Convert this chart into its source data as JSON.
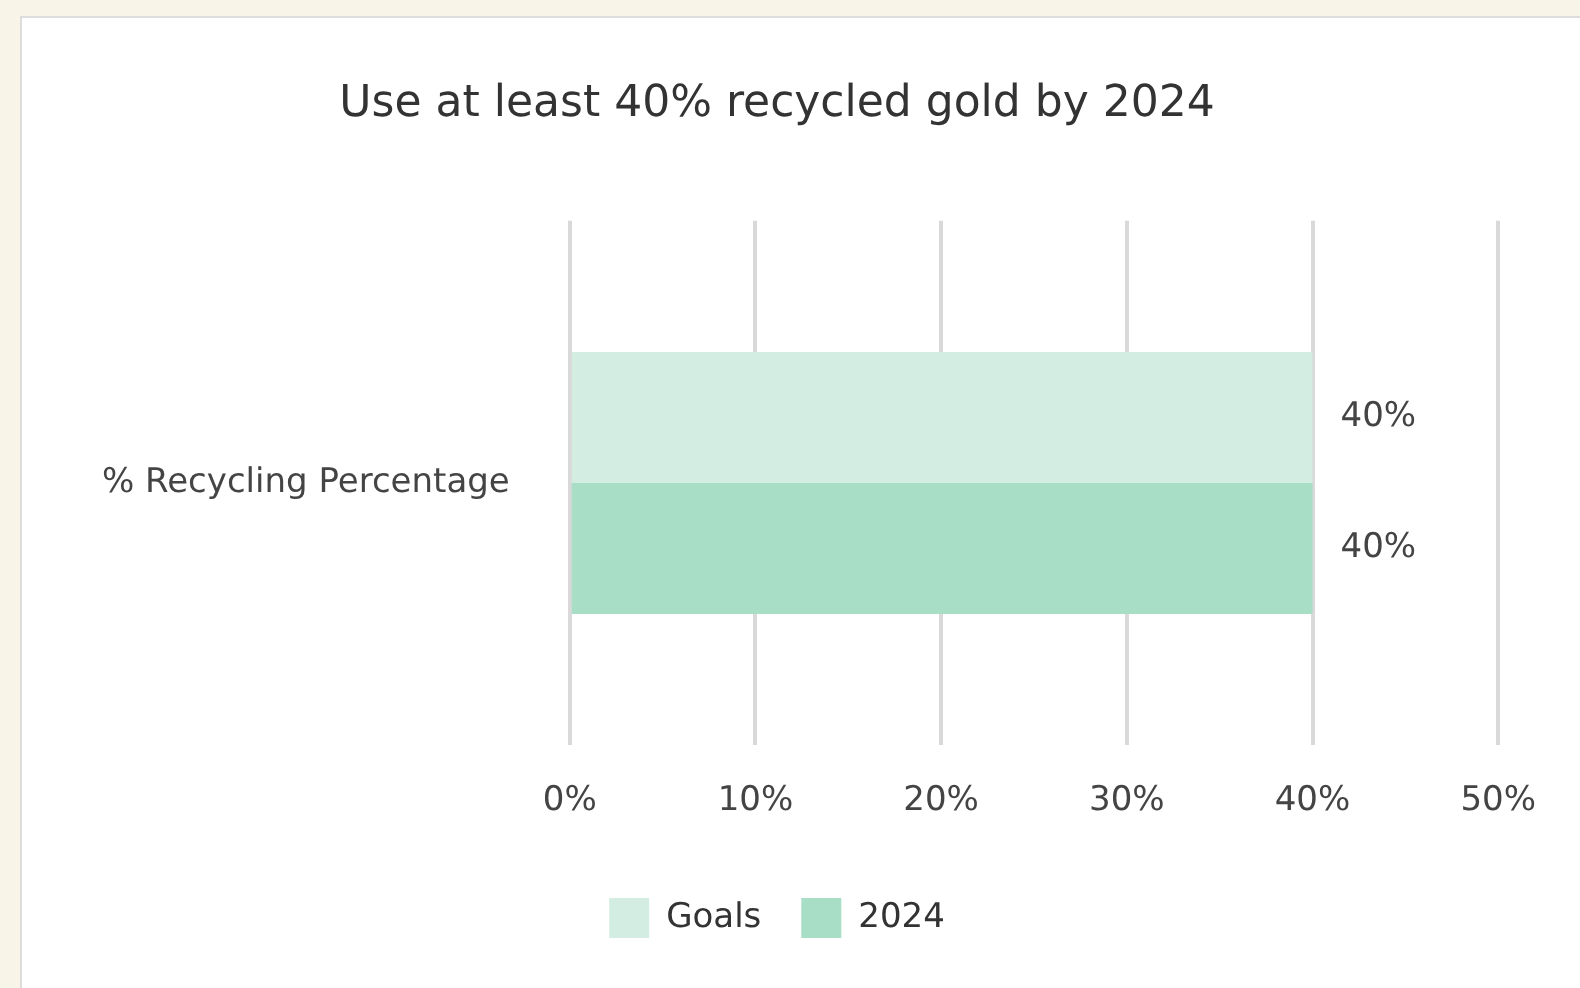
{
  "chart_data": {
    "type": "bar",
    "orientation": "horizontal",
    "title": "Use at least 40% recycled gold by 2024",
    "categories": [
      "% Recycling Percentage"
    ],
    "series": [
      {
        "name": "Goals",
        "color": "#d4ede2",
        "values": [
          40
        ],
        "value_labels": [
          "40%"
        ]
      },
      {
        "name": "2024",
        "color": "#a8ddc6",
        "values": [
          40
        ],
        "value_labels": [
          "40%"
        ]
      }
    ],
    "xlim": [
      0,
      50
    ],
    "xticks": [
      {
        "value": 0,
        "label": "0%"
      },
      {
        "value": 10,
        "label": "10%"
      },
      {
        "value": 20,
        "label": "20%"
      },
      {
        "value": 30,
        "label": "30%"
      },
      {
        "value": 40,
        "label": "40%"
      },
      {
        "value": 50,
        "label": "50%"
      }
    ],
    "grid": "x",
    "legend": "bottom"
  }
}
